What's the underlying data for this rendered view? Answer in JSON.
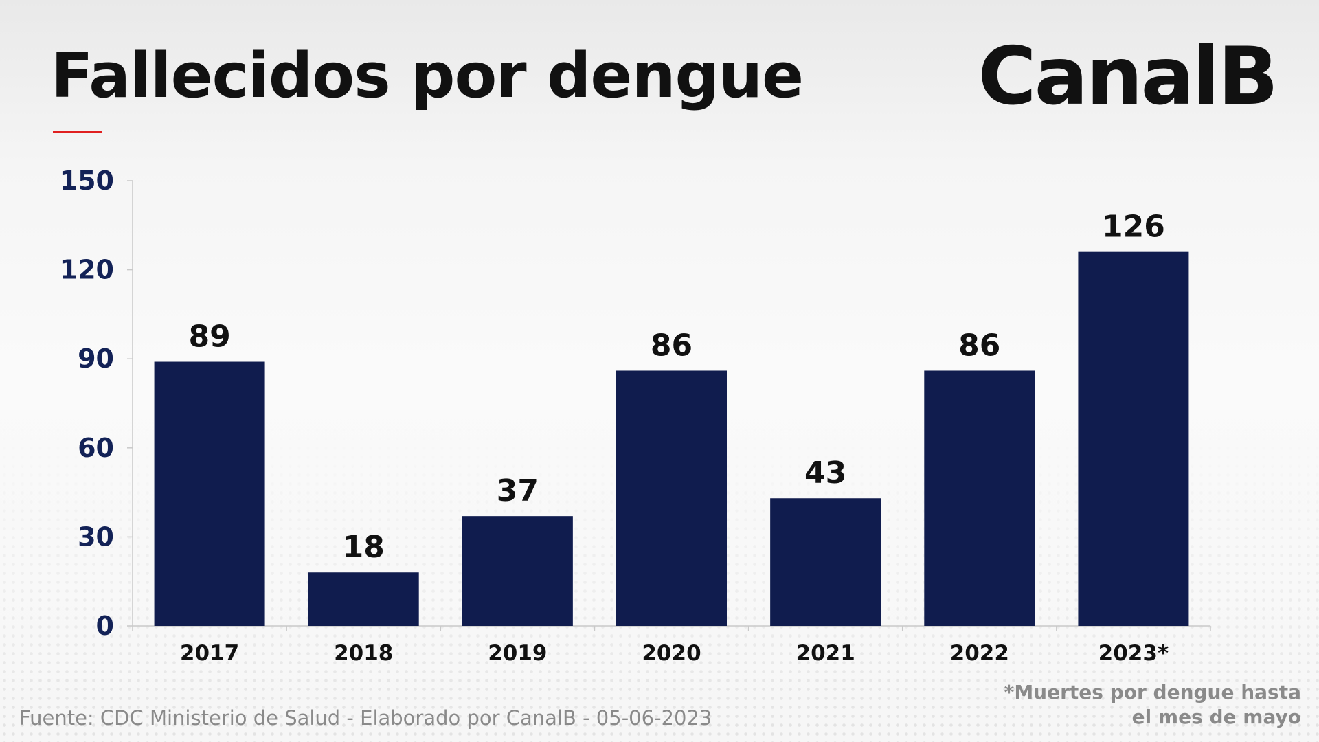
{
  "header": {
    "title": "Fallecidos por dengue",
    "logo": "CanalB",
    "accent_color": "#e02020"
  },
  "chart_data": {
    "type": "bar",
    "title": "Fallecidos por dengue",
    "categories": [
      "2017",
      "2018",
      "2019",
      "2020",
      "2021",
      "2022",
      "2023*"
    ],
    "values": [
      89,
      18,
      37,
      86,
      43,
      86,
      126
    ],
    "data_labels": [
      "89",
      "18",
      "37",
      "86",
      "43",
      "86",
      "126"
    ],
    "ylim": [
      0,
      150
    ],
    "yticks": [
      "0",
      "30",
      "60",
      "90",
      "120",
      "150"
    ],
    "xlabel": "",
    "ylabel": "",
    "grid": false,
    "legend": "none",
    "bar_color": "#101c4e",
    "tick_color": "#132257"
  },
  "footer": {
    "source": "Fuente: CDC Ministerio de Salud - Elaborado por CanalB - 05-06-2023",
    "footnote_line1": "*Muertes por dengue hasta",
    "footnote_line2": "el mes de mayo"
  }
}
